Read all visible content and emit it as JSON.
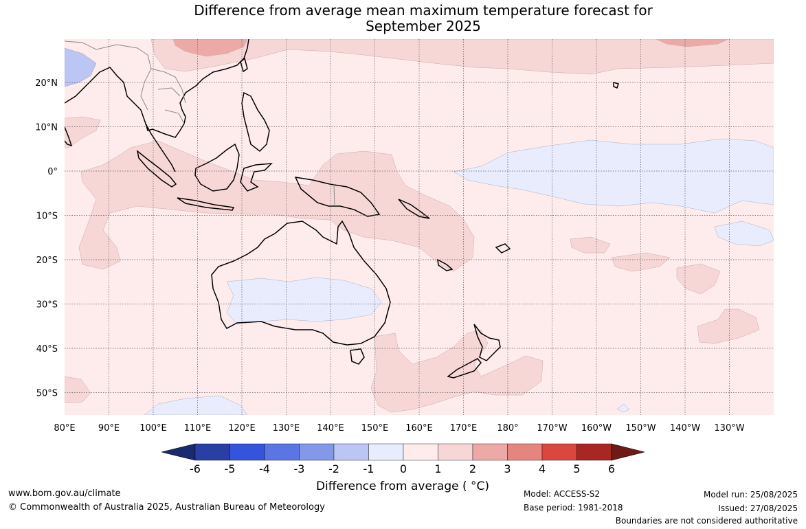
{
  "title_line1": "Difference from average mean maximum temperature forecast for",
  "title_line2": "September 2025",
  "lat_labels": [
    "20°N",
    "10°N",
    "0°",
    "10°S",
    "20°S",
    "30°S",
    "40°S",
    "50°S"
  ],
  "lon_labels": [
    "80°E",
    "90°E",
    "100°E",
    "110°E",
    "120°E",
    "130°E",
    "140°E",
    "150°E",
    "160°E",
    "170°E",
    "180°",
    "170°W",
    "160°W",
    "150°W",
    "140°W",
    "130°W"
  ],
  "colorbar": {
    "ticks": [
      "-6",
      "-5",
      "-4",
      "-3",
      "-2",
      "-1",
      "0",
      "1",
      "2",
      "3",
      "4",
      "5",
      "6"
    ],
    "colors": [
      "#2a3fa6",
      "#3454dc",
      "#5a76e4",
      "#8498ea",
      "#bcc6f4",
      "#e8ecfc",
      "#fdeceb",
      "#f7d7d6",
      "#eda9a6",
      "#e4857f",
      "#db473d",
      "#a92723"
    ],
    "low_color": "#1a2a70",
    "high_color": "#6f1a16",
    "label": "Difference from average ( °C)"
  },
  "footer": {
    "website": "www.bom.gov.au/climate",
    "copyright": "© Commonwealth of Australia 2025, Australian Bureau of Meteorology",
    "model": "Model: ACCESS-S2",
    "base_period": "Base period: 1981-2018",
    "model_run": "Model run: 25/08/2025",
    "issued": "Issued: 27/08/2025",
    "disclaimer": "Boundaries are not considered authoritative"
  }
}
